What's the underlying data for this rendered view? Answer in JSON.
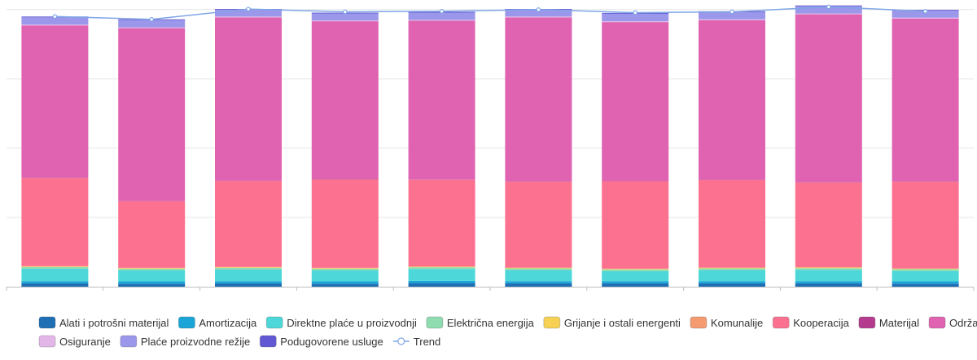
{
  "chart_data": {
    "type": "bar",
    "stacked": true,
    "grid": "horizontal",
    "legend_position": "bottom",
    "categories": [
      "",
      "",
      "",
      "",
      "",
      "",
      "",
      "",
      "",
      ""
    ],
    "ylim": [
      0,
      100
    ],
    "series": [
      {
        "name": "Alati i potrošni materijal",
        "color": "#1f6fb5",
        "values": [
          1.2,
          1.1,
          1.2,
          1.1,
          1.3,
          1.2,
          1.2,
          1.2,
          1.2,
          1.1
        ]
      },
      {
        "name": "Amortizacija",
        "color": "#1aa5d6",
        "values": [
          0.8,
          0.8,
          0.8,
          0.8,
          0.8,
          0.8,
          0.8,
          0.8,
          0.8,
          0.8
        ]
      },
      {
        "name": "Direktne plaće u proizvodnji",
        "color": "#4dd7d8",
        "values": [
          4.5,
          4.0,
          4.2,
          4.0,
          4.3,
          4.0,
          3.6,
          4.0,
          4.1,
          3.8
        ]
      },
      {
        "name": "Električna energija",
        "color": "#8edcb0",
        "values": [
          0.6,
          0.6,
          0.6,
          0.6,
          0.6,
          0.6,
          0.6,
          0.6,
          0.6,
          0.6
        ]
      },
      {
        "name": "Grijanje i ostali energenti",
        "color": "#f7d154",
        "values": [
          0.2,
          0.2,
          0.2,
          0.2,
          0.2,
          0.2,
          0.2,
          0.2,
          0.2,
          0.2
        ]
      },
      {
        "name": "Komunalije",
        "color": "#f49b72",
        "values": [
          0.1,
          0.1,
          0.1,
          0.1,
          0.1,
          0.1,
          0.1,
          0.1,
          0.1,
          0.1
        ]
      },
      {
        "name": "Kooperacija",
        "color": "#fc718f",
        "values": [
          31.8,
          24.0,
          31.1,
          31.9,
          31.3,
          31.0,
          31.6,
          31.6,
          30.6,
          31.3
        ]
      },
      {
        "name": "Materijal",
        "color": "#b53b8e",
        "values": [
          0.1,
          0.1,
          0.1,
          0.1,
          0.1,
          0.1,
          0.1,
          0.1,
          0.1,
          0.1
        ]
      },
      {
        "name": "Održavanje",
        "color": "#df63b0",
        "values": [
          55.0,
          62.4,
          58.9,
          57.0,
          57.3,
          59.2,
          57.3,
          57.6,
          60.6,
          58.8
        ]
      },
      {
        "name": "Osiguranje",
        "color": "#e2b7e8",
        "values": [
          0.3,
          0.3,
          0.3,
          0.3,
          0.3,
          0.3,
          0.3,
          0.3,
          0.3,
          0.3
        ]
      },
      {
        "name": "Plaće proizvodne režije",
        "color": "#9b97ea",
        "values": [
          2.6,
          2.6,
          2.4,
          2.5,
          2.6,
          2.4,
          2.7,
          2.6,
          2.6,
          2.5
        ]
      },
      {
        "name": "Podugovorene usluge",
        "color": "#6258d3",
        "values": [
          0.3,
          0.3,
          0.3,
          0.3,
          0.3,
          0.3,
          0.3,
          0.3,
          0.3,
          0.3
        ]
      }
    ],
    "trend": {
      "name": "Trend",
      "color": "#7fa6e6",
      "values": [
        97.5,
        96.5,
        100.2,
        99.2,
        99.4,
        100.0,
        98.9,
        99.2,
        101.0,
        99.4
      ]
    }
  }
}
